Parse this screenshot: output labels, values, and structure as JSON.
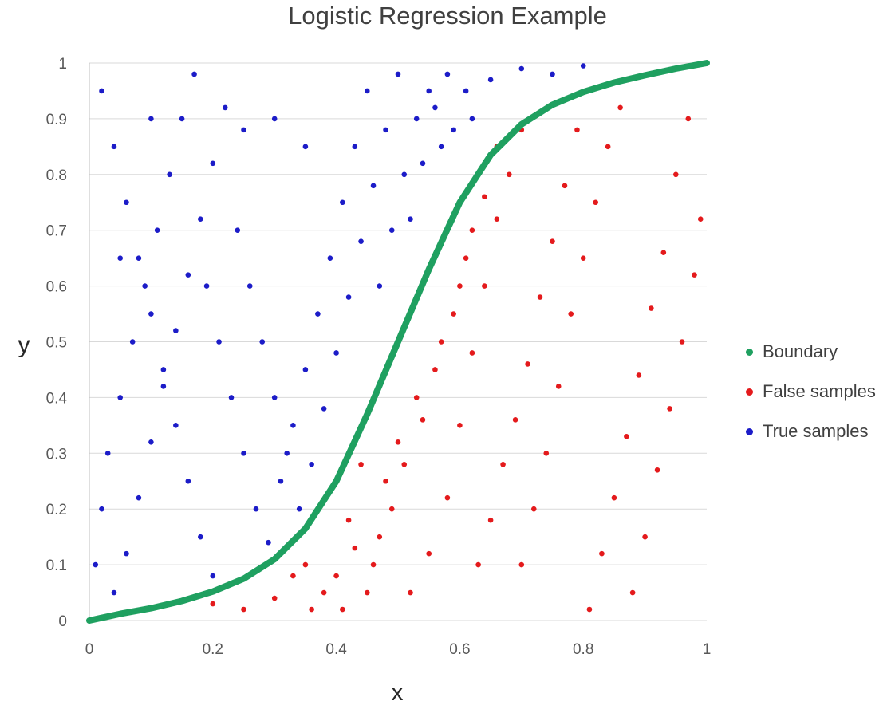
{
  "chart_data": {
    "type": "scatter",
    "title": "Logistic Regression Example",
    "xlabel": "x",
    "ylabel": "y",
    "xlim": [
      0,
      1
    ],
    "ylim": [
      0,
      1
    ],
    "x_ticks": [
      "0",
      "0.2",
      "0.4",
      "0.6",
      "0.8",
      "1"
    ],
    "y_ticks": [
      "0",
      "0.1",
      "0.2",
      "0.3",
      "0.4",
      "0.5",
      "0.6",
      "0.7",
      "0.8",
      "0.9",
      "1"
    ],
    "grid": "horizontal",
    "legend_position": "right",
    "series": [
      {
        "name": "Boundary",
        "color": "#1fa060",
        "style": "thick-curve",
        "points": [
          [
            0.0,
            0.0
          ],
          [
            0.05,
            0.012
          ],
          [
            0.1,
            0.022
          ],
          [
            0.15,
            0.035
          ],
          [
            0.2,
            0.052
          ],
          [
            0.25,
            0.075
          ],
          [
            0.3,
            0.11
          ],
          [
            0.35,
            0.165
          ],
          [
            0.4,
            0.25
          ],
          [
            0.45,
            0.37
          ],
          [
            0.5,
            0.5
          ],
          [
            0.55,
            0.63
          ],
          [
            0.6,
            0.75
          ],
          [
            0.65,
            0.835
          ],
          [
            0.7,
            0.89
          ],
          [
            0.75,
            0.925
          ],
          [
            0.8,
            0.948
          ],
          [
            0.85,
            0.965
          ],
          [
            0.9,
            0.978
          ],
          [
            0.95,
            0.99
          ],
          [
            1.0,
            1.0
          ]
        ]
      },
      {
        "name": "False samples",
        "color": "#e41a1c",
        "points": [
          [
            0.52,
            0.05
          ],
          [
            0.55,
            0.12
          ],
          [
            0.58,
            0.22
          ],
          [
            0.6,
            0.35
          ],
          [
            0.62,
            0.48
          ],
          [
            0.64,
            0.6
          ],
          [
            0.66,
            0.72
          ],
          [
            0.68,
            0.8
          ],
          [
            0.7,
            0.1
          ],
          [
            0.72,
            0.2
          ],
          [
            0.74,
            0.3
          ],
          [
            0.76,
            0.42
          ],
          [
            0.78,
            0.55
          ],
          [
            0.8,
            0.65
          ],
          [
            0.82,
            0.75
          ],
          [
            0.84,
            0.85
          ],
          [
            0.86,
            0.92
          ],
          [
            0.88,
            0.05
          ],
          [
            0.9,
            0.15
          ],
          [
            0.92,
            0.27
          ],
          [
            0.94,
            0.38
          ],
          [
            0.96,
            0.5
          ],
          [
            0.98,
            0.62
          ],
          [
            0.99,
            0.72
          ],
          [
            0.45,
            0.05
          ],
          [
            0.47,
            0.15
          ],
          [
            0.48,
            0.25
          ],
          [
            0.5,
            0.32
          ],
          [
            0.53,
            0.4
          ],
          [
            0.56,
            0.45
          ],
          [
            0.59,
            0.55
          ],
          [
            0.61,
            0.65
          ],
          [
            0.63,
            0.1
          ],
          [
            0.65,
            0.18
          ],
          [
            0.67,
            0.28
          ],
          [
            0.69,
            0.36
          ],
          [
            0.71,
            0.46
          ],
          [
            0.73,
            0.58
          ],
          [
            0.75,
            0.68
          ],
          [
            0.77,
            0.78
          ],
          [
            0.79,
            0.88
          ],
          [
            0.81,
            0.02
          ],
          [
            0.83,
            0.12
          ],
          [
            0.85,
            0.22
          ],
          [
            0.87,
            0.33
          ],
          [
            0.89,
            0.44
          ],
          [
            0.91,
            0.56
          ],
          [
            0.93,
            0.66
          ],
          [
            0.95,
            0.8
          ],
          [
            0.97,
            0.9
          ],
          [
            0.4,
            0.08
          ],
          [
            0.42,
            0.18
          ],
          [
            0.44,
            0.28
          ],
          [
            0.46,
            0.1
          ],
          [
            0.38,
            0.05
          ],
          [
            0.35,
            0.1
          ],
          [
            0.3,
            0.04
          ],
          [
            0.25,
            0.02
          ],
          [
            0.2,
            0.03
          ],
          [
            0.33,
            0.08
          ],
          [
            0.36,
            0.02
          ],
          [
            0.41,
            0.02
          ],
          [
            0.43,
            0.13
          ],
          [
            0.49,
            0.2
          ],
          [
            0.51,
            0.28
          ],
          [
            0.54,
            0.36
          ],
          [
            0.57,
            0.5
          ],
          [
            0.6,
            0.6
          ],
          [
            0.62,
            0.7
          ],
          [
            0.64,
            0.76
          ],
          [
            0.66,
            0.85
          ],
          [
            0.7,
            0.88
          ]
        ]
      },
      {
        "name": "True samples",
        "color": "#1c1cc8",
        "points": [
          [
            0.02,
            0.95
          ],
          [
            0.04,
            0.85
          ],
          [
            0.06,
            0.75
          ],
          [
            0.08,
            0.65
          ],
          [
            0.1,
            0.55
          ],
          [
            0.12,
            0.45
          ],
          [
            0.14,
            0.35
          ],
          [
            0.16,
            0.25
          ],
          [
            0.18,
            0.15
          ],
          [
            0.2,
            0.08
          ],
          [
            0.03,
            0.3
          ],
          [
            0.05,
            0.4
          ],
          [
            0.07,
            0.5
          ],
          [
            0.09,
            0.6
          ],
          [
            0.11,
            0.7
          ],
          [
            0.13,
            0.8
          ],
          [
            0.15,
            0.9
          ],
          [
            0.17,
            0.98
          ],
          [
            0.19,
            0.6
          ],
          [
            0.21,
            0.5
          ],
          [
            0.23,
            0.4
          ],
          [
            0.25,
            0.3
          ],
          [
            0.27,
            0.2
          ],
          [
            0.29,
            0.14
          ],
          [
            0.31,
            0.25
          ],
          [
            0.33,
            0.35
          ],
          [
            0.35,
            0.45
          ],
          [
            0.37,
            0.55
          ],
          [
            0.39,
            0.65
          ],
          [
            0.41,
            0.75
          ],
          [
            0.43,
            0.85
          ],
          [
            0.45,
            0.95
          ],
          [
            0.47,
            0.6
          ],
          [
            0.49,
            0.7
          ],
          [
            0.51,
            0.8
          ],
          [
            0.53,
            0.9
          ],
          [
            0.55,
            0.95
          ],
          [
            0.57,
            0.85
          ],
          [
            0.59,
            0.88
          ],
          [
            0.61,
            0.95
          ],
          [
            0.65,
            0.97
          ],
          [
            0.7,
            0.99
          ],
          [
            0.75,
            0.98
          ],
          [
            0.8,
            0.995
          ],
          [
            0.01,
            0.1
          ],
          [
            0.02,
            0.2
          ],
          [
            0.04,
            0.05
          ],
          [
            0.06,
            0.12
          ],
          [
            0.08,
            0.22
          ],
          [
            0.1,
            0.32
          ],
          [
            0.12,
            0.42
          ],
          [
            0.14,
            0.52
          ],
          [
            0.16,
            0.62
          ],
          [
            0.18,
            0.72
          ],
          [
            0.2,
            0.82
          ],
          [
            0.22,
            0.92
          ],
          [
            0.24,
            0.7
          ],
          [
            0.26,
            0.6
          ],
          [
            0.28,
            0.5
          ],
          [
            0.3,
            0.4
          ],
          [
            0.32,
            0.3
          ],
          [
            0.34,
            0.2
          ],
          [
            0.36,
            0.28
          ],
          [
            0.38,
            0.38
          ],
          [
            0.4,
            0.48
          ],
          [
            0.42,
            0.58
          ],
          [
            0.44,
            0.68
          ],
          [
            0.46,
            0.78
          ],
          [
            0.48,
            0.88
          ],
          [
            0.5,
            0.98
          ],
          [
            0.52,
            0.72
          ],
          [
            0.54,
            0.82
          ],
          [
            0.56,
            0.92
          ],
          [
            0.58,
            0.98
          ],
          [
            0.62,
            0.9
          ],
          [
            0.35,
            0.85
          ],
          [
            0.3,
            0.9
          ],
          [
            0.25,
            0.88
          ],
          [
            0.1,
            0.9
          ],
          [
            0.05,
            0.65
          ]
        ]
      }
    ]
  }
}
